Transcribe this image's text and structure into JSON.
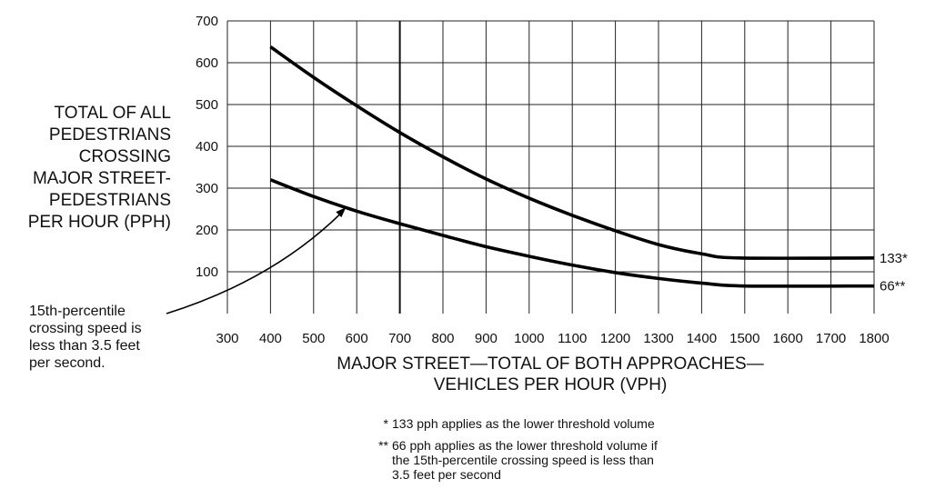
{
  "chart_data": {
    "type": "line",
    "xlabel": [
      "MAJOR STREET—TOTAL OF BOTH APPROACHES—",
      "VEHICLES PER HOUR (VPH)"
    ],
    "ylabel": [
      "TOTAL OF ALL",
      "PEDESTRIANS",
      "CROSSING",
      "MAJOR STREET-",
      "PEDESTRIANS",
      "PER HOUR (PPH)"
    ],
    "xlim": [
      300,
      1800
    ],
    "ylim": [
      0,
      700
    ],
    "x_ticks": [
      300,
      400,
      500,
      600,
      700,
      800,
      900,
      1000,
      1100,
      1200,
      1300,
      1400,
      1500,
      1600,
      1700,
      1800
    ],
    "y_ticks": [
      100,
      200,
      300,
      400,
      500,
      600,
      700
    ],
    "grid": true,
    "reference_line_x": 700,
    "series": [
      {
        "end_label": "133*",
        "x": [
          400,
          500,
          600,
          700,
          800,
          900,
          1000,
          1100,
          1200,
          1300,
          1400,
          1487,
          1800
        ],
        "y": [
          638,
          565,
          497,
          433,
          375,
          322,
          276,
          235,
          198,
          165,
          143,
          133,
          133
        ]
      },
      {
        "end_label": "66**",
        "x": [
          400,
          500,
          600,
          700,
          800,
          900,
          1000,
          1100,
          1200,
          1300,
          1400,
          1500,
          1800
        ],
        "y": [
          320,
          280,
          245,
          215,
          187,
          160,
          137,
          116,
          98,
          84,
          73,
          66,
          66
        ]
      }
    ],
    "annotation": {
      "text": [
        "15th-percentile",
        "crossing speed is",
        "less than 3.5 feet",
        "per second."
      ],
      "points_to": {
        "x": 575,
        "y": 254
      }
    },
    "footnotes": [
      {
        "mark": "*",
        "lines": [
          "133 pph applies as the lower threshold volume"
        ]
      },
      {
        "mark": "**",
        "lines": [
          "66 pph applies as the lower threshold volume if",
          "the 15th-percentile crossing speed is less than",
          "3.5 feet per second"
        ]
      }
    ]
  }
}
